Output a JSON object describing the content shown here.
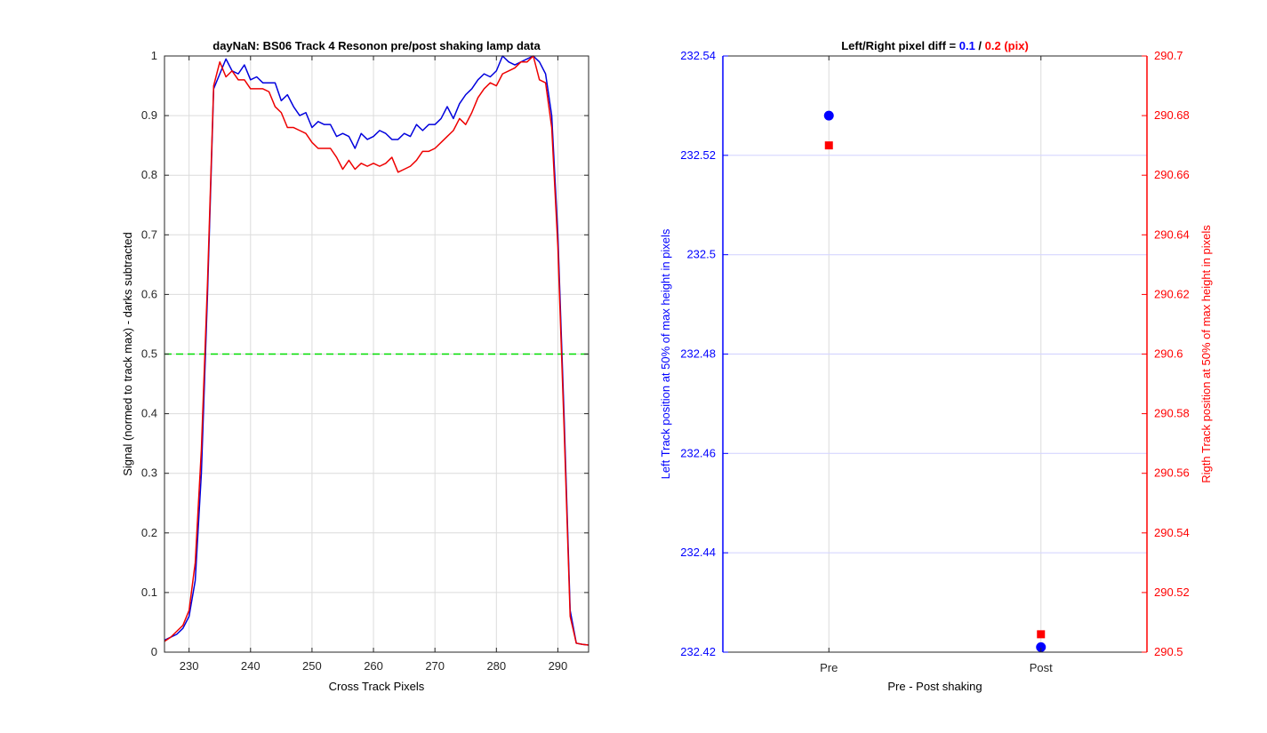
{
  "chart_data": [
    {
      "type": "line",
      "title": "dayNaN: BS06  Track 4 Resonon pre/post shaking lamp data",
      "xlabel": "Cross Track Pixels",
      "ylabel": "Signal (normed to track max) - darks subtracted",
      "xlim": [
        226,
        295
      ],
      "ylim": [
        0,
        1
      ],
      "xticks": [
        230,
        240,
        250,
        260,
        270,
        280,
        290
      ],
      "yticks": [
        0,
        0.1,
        0.2,
        0.3,
        0.4,
        0.5,
        0.6,
        0.7,
        0.8,
        0.9,
        1
      ],
      "grid": true,
      "threshold": {
        "y": 0.5,
        "color": "#00dd00",
        "style": "dashed"
      },
      "series": [
        {
          "color": "#0000dd",
          "x": [
            226,
            227,
            228,
            229,
            230,
            231,
            232,
            233,
            234,
            235,
            236,
            237,
            238,
            239,
            240,
            241,
            242,
            243,
            244,
            245,
            246,
            247,
            248,
            249,
            250,
            251,
            252,
            253,
            254,
            255,
            256,
            257,
            258,
            259,
            260,
            261,
            262,
            263,
            264,
            265,
            266,
            267,
            268,
            269,
            270,
            271,
            272,
            273,
            274,
            275,
            276,
            277,
            278,
            279,
            280,
            281,
            282,
            283,
            284,
            285,
            286,
            287,
            288,
            289,
            290,
            291,
            292,
            293,
            294,
            295
          ],
          "y": [
            0.02,
            0.025,
            0.03,
            0.04,
            0.06,
            0.12,
            0.3,
            0.6,
            0.945,
            0.97,
            0.995,
            0.975,
            0.97,
            0.985,
            0.96,
            0.965,
            0.955,
            0.955,
            0.955,
            0.925,
            0.935,
            0.915,
            0.9,
            0.905,
            0.88,
            0.89,
            0.885,
            0.885,
            0.865,
            0.87,
            0.865,
            0.845,
            0.87,
            0.86,
            0.865,
            0.875,
            0.87,
            0.86,
            0.86,
            0.87,
            0.865,
            0.885,
            0.875,
            0.885,
            0.885,
            0.895,
            0.915,
            0.895,
            0.92,
            0.935,
            0.945,
            0.96,
            0.97,
            0.965,
            0.975,
            1.0,
            0.99,
            0.985,
            0.99,
            0.995,
            1.0,
            0.99,
            0.97,
            0.9,
            0.7,
            0.4,
            0.07,
            0.015,
            0.013,
            0.012
          ]
        },
        {
          "color": "#ee0000",
          "x": [
            226,
            227,
            228,
            229,
            230,
            231,
            232,
            233,
            234,
            235,
            236,
            237,
            238,
            239,
            240,
            241,
            242,
            243,
            244,
            245,
            246,
            247,
            248,
            249,
            250,
            251,
            252,
            253,
            254,
            255,
            256,
            257,
            258,
            259,
            260,
            261,
            262,
            263,
            264,
            265,
            266,
            267,
            268,
            269,
            270,
            271,
            272,
            273,
            274,
            275,
            276,
            277,
            278,
            279,
            280,
            281,
            282,
            283,
            284,
            285,
            286,
            287,
            288,
            289,
            290,
            291,
            292,
            293,
            294,
            295
          ],
          "y": [
            0.018,
            0.025,
            0.035,
            0.045,
            0.07,
            0.15,
            0.34,
            0.62,
            0.95,
            0.99,
            0.965,
            0.975,
            0.96,
            0.96,
            0.945,
            0.945,
            0.945,
            0.94,
            0.915,
            0.905,
            0.88,
            0.88,
            0.875,
            0.87,
            0.855,
            0.845,
            0.845,
            0.845,
            0.83,
            0.81,
            0.825,
            0.81,
            0.82,
            0.815,
            0.82,
            0.815,
            0.82,
            0.83,
            0.805,
            0.81,
            0.815,
            0.825,
            0.84,
            0.84,
            0.845,
            0.855,
            0.865,
            0.875,
            0.895,
            0.885,
            0.905,
            0.93,
            0.945,
            0.955,
            0.95,
            0.97,
            0.975,
            0.98,
            0.99,
            0.99,
            1.0,
            0.96,
            0.955,
            0.88,
            0.68,
            0.38,
            0.06,
            0.015,
            0.013,
            0.012
          ]
        }
      ]
    },
    {
      "type": "scatter",
      "title_prefix": "Left/Right pixel diff = ",
      "title_left": "0.1",
      "title_sep": " / ",
      "title_right": "0.2 (pix)",
      "xlabel": "Pre - Post shaking",
      "categories": [
        "Pre",
        "Post"
      ],
      "grid": true,
      "left_axis": {
        "label": "Left Track position at 50% of max height in pixels",
        "color": "#0000ff",
        "ylim": [
          232.42,
          232.54
        ],
        "ticks": [
          "232.42",
          "232.44",
          "232.46",
          "232.48",
          "232.5",
          "232.52",
          "232.54"
        ],
        "values": [
          232.528,
          232.421
        ]
      },
      "right_axis": {
        "label": "Rigth Track position at 50% of max height in pixels",
        "color": "#ff0000",
        "ylim": [
          290.5,
          290.7
        ],
        "ticks": [
          "290.5",
          "290.52",
          "290.54",
          "290.56",
          "290.58",
          "290.6",
          "290.62",
          "290.64",
          "290.66",
          "290.68",
          "290.7"
        ],
        "values": [
          290.67,
          290.506
        ]
      }
    }
  ]
}
